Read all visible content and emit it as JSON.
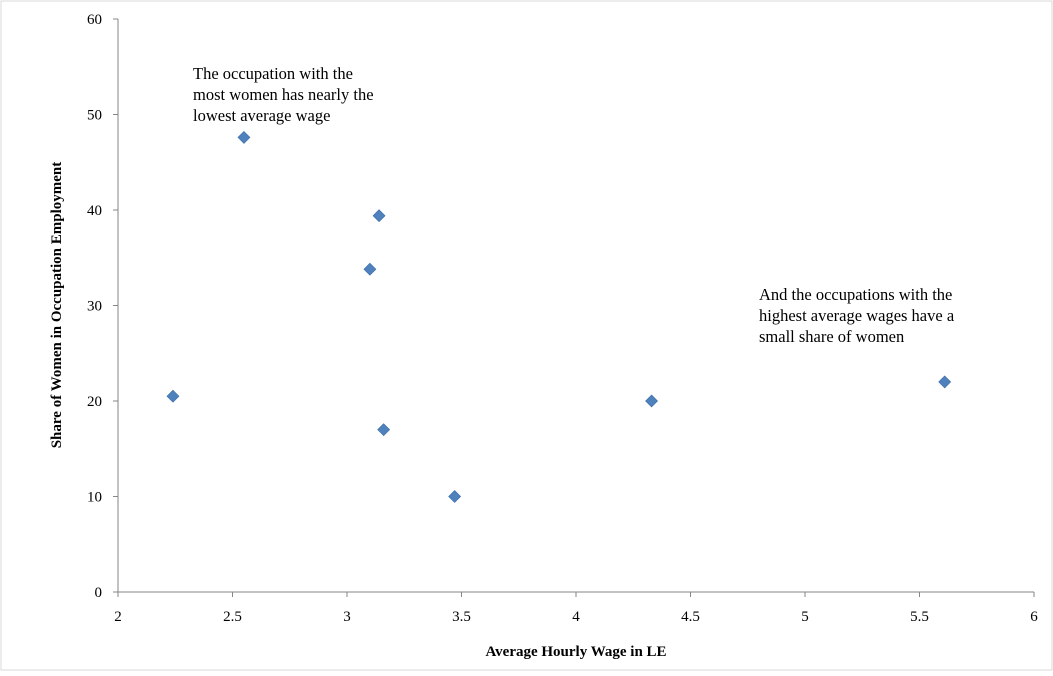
{
  "chart_data": {
    "type": "scatter",
    "title": "",
    "xlabel": "Average  Hourly Wage  in LE",
    "ylabel": "Share of Women in Occupation Employment",
    "xlim": [
      2,
      6
    ],
    "ylim": [
      0,
      60
    ],
    "xticks": [
      "2",
      "2.5",
      "3",
      "3.5",
      "4",
      "4.5",
      "5",
      "5.5",
      "6"
    ],
    "yticks": [
      "0",
      "10",
      "20",
      "30",
      "40",
      "50",
      "60"
    ],
    "grid": false,
    "legend": "none",
    "marker": "diamond",
    "color": "#4f81bd",
    "series": [
      {
        "points": [
          {
            "x": 2.24,
            "y": 20.5
          },
          {
            "x": 2.55,
            "y": 47.6
          },
          {
            "x": 3.1,
            "y": 33.8
          },
          {
            "x": 3.14,
            "y": 39.4
          },
          {
            "x": 3.16,
            "y": 17.0
          },
          {
            "x": 3.47,
            "y": 10.0
          },
          {
            "x": 4.33,
            "y": 20.0
          },
          {
            "x": 5.61,
            "y": 22.0
          }
        ]
      }
    ],
    "annotations": [
      {
        "lines": [
          "The occupation with the",
          "most  women has nearly the",
          "lowest average wage"
        ]
      },
      {
        "lines": [
          "And the occupations with the",
          "highest average wages have a",
          "small share of women"
        ]
      }
    ]
  }
}
